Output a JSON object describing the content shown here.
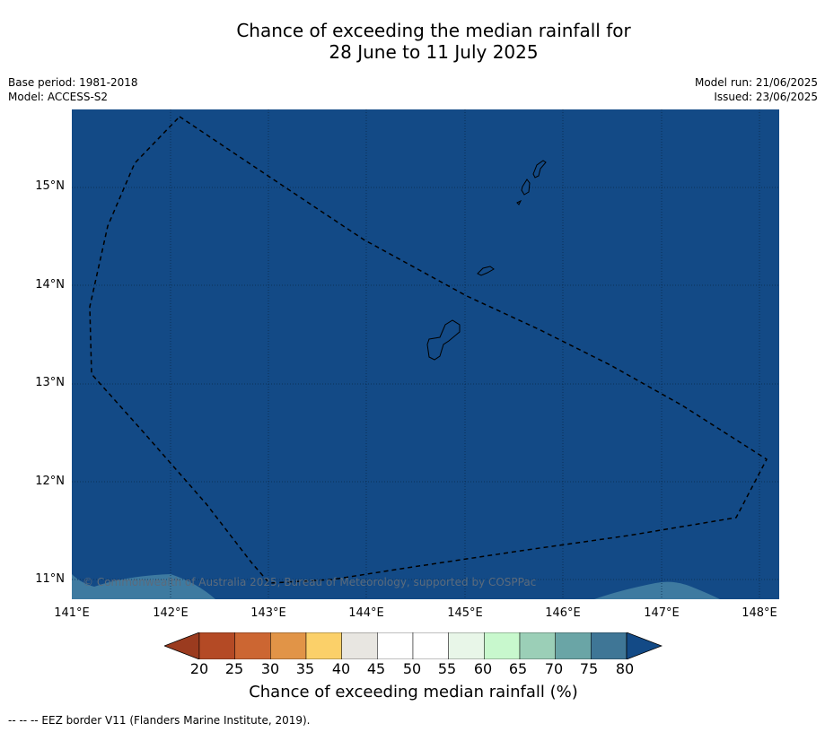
{
  "title_line1": "Chance of exceeding the median rainfall for",
  "title_line2": "28 June to 11 July 2025",
  "meta": {
    "base_period": "Base period: 1981-2018",
    "model": "Model: ACCESS-S2",
    "model_run": "Model run: 21/06/2025",
    "issued": "Issued: 23/06/2025"
  },
  "map": {
    "latitude_labels": [
      "15°N",
      "14°N",
      "13°N",
      "12°N",
      "11°N"
    ],
    "longitude_labels": [
      "141°E",
      "142°E",
      "143°E",
      "144°E",
      "145°E",
      "146°E",
      "147°E",
      "148°E"
    ],
    "copyright": "© Commonwealth of Australia 2025, Bureau of Meteorology, supported by COSPPac",
    "colors": {
      "ocean_main": "#134a86",
      "ocean_lower": "#3e7aa0"
    }
  },
  "colorbar": {
    "ticks": [
      "20",
      "25",
      "30",
      "35",
      "40",
      "45",
      "50",
      "55",
      "60",
      "65",
      "70",
      "75",
      "80"
    ],
    "colors": [
      "#9b3b1f",
      "#b44a25",
      "#cc6632",
      "#e19447",
      "#fbd069",
      "#e8e6e1",
      "#ffffff",
      "#ffffff",
      "#e8f6e8",
      "#c8f8cd",
      "#9bcfb7",
      "#6aa5a6",
      "#3f7696",
      "#134a86"
    ],
    "label": "Chance of exceeding median rainfall (%)"
  },
  "footnote": "--  --  -- EEZ border V11 (Flanders Marine Institute, 2019)."
}
